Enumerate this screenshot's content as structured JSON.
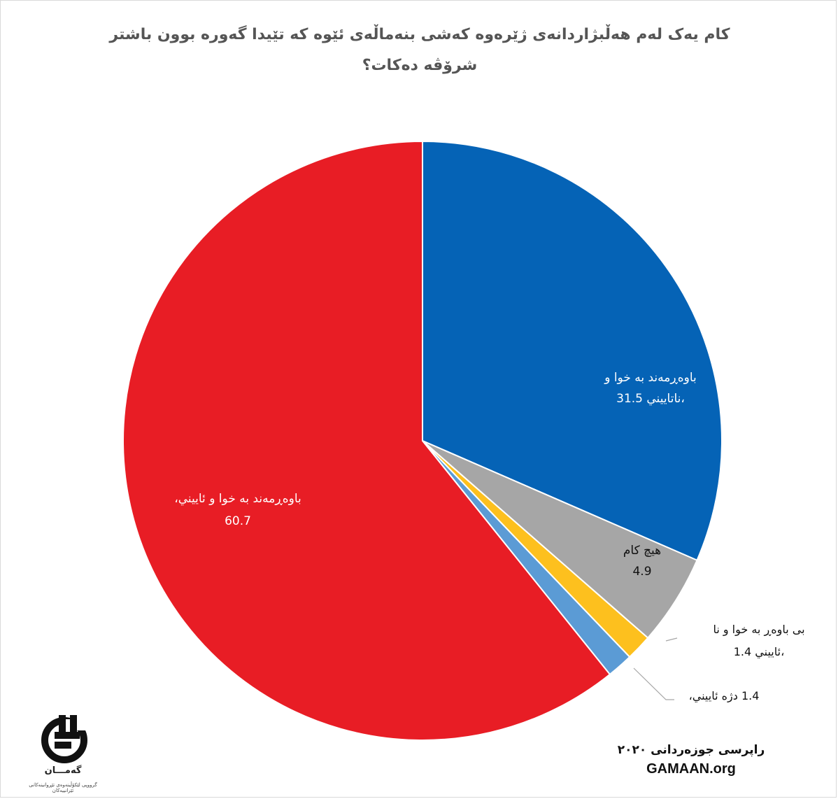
{
  "title": "کام یەک لەم هەڵبژاردانەی ژێرەوە کەشی بنەماڵەی ئێوە کە تێیدا گەورە بوون باشتر شرۆڤە دەکات؟",
  "chart_data": {
    "type": "pie",
    "title": "کام یەک لەم هەڵبژاردانەی ژێرەوە کەشی بنەماڵەی ئێوە کە تێیدا گەورە بوون باشتر شرۆڤە دەکات؟",
    "slices": [
      {
        "label_line1": "باوەڕمەند به خوا و",
        "label_line2": "ناتاییني،",
        "value": 31.5,
        "value_text": "31.5",
        "color": "#0563b6"
      },
      {
        "label_line1": "هیچ کام",
        "label_line2": "",
        "value": 4.9,
        "value_text": "4.9",
        "color": "#a6a6a6"
      },
      {
        "label_line1": "بی باوەڕ به خوا و نا",
        "label_line2": "ئاييني،",
        "value": 1.4,
        "value_text": "1.4",
        "color": "#fdc01e"
      },
      {
        "label_line1": "دژە ئاييني،",
        "label_line2": "",
        "value": 1.4,
        "value_text": "1.4",
        "color": "#5b9bd5"
      },
      {
        "label_line1": "باوەڕمەند به خوا و ئاييني،",
        "label_line2": "",
        "value": 60.7,
        "value_text": "60.7",
        "color": "#e81d25"
      }
    ]
  },
  "footer": {
    "survey": "راپرسی جوزەردانی ٢٠٢٠",
    "site": "GAMAAN.org"
  },
  "logo": {
    "name": "گەمـــان",
    "tagline": "گرووپی لێکۆڵینەوەی تێڕوانینەکانی ئێرانییەکان"
  }
}
